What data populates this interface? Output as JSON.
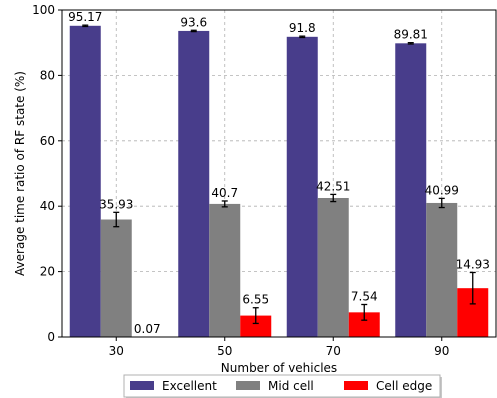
{
  "chart_data": {
    "type": "bar",
    "title": "",
    "xlabel": "Number of vehicles",
    "ylabel": "Average time ratio of RF state (%)",
    "categories": [
      "30",
      "50",
      "70",
      "90"
    ],
    "ylim": [
      0,
      100
    ],
    "yticks": [
      0,
      20,
      40,
      60,
      80,
      100
    ],
    "grid": true,
    "legend_position": "bottom",
    "series": [
      {
        "name": "Excellent",
        "color": "#483d8b",
        "values": [
          95.17,
          93.6,
          91.8,
          89.81
        ],
        "labels": [
          "95.17",
          "93.6",
          "91.8",
          "89.81"
        ],
        "errors": [
          0.2,
          0.2,
          0.2,
          0.2
        ]
      },
      {
        "name": "Mid cell",
        "color": "#808080",
        "values": [
          35.93,
          40.7,
          42.51,
          40.99
        ],
        "labels": [
          "35.93",
          "40.7",
          "42.51",
          "40.99"
        ],
        "errors": [
          2.2,
          0.9,
          1.1,
          1.4
        ]
      },
      {
        "name": "Cell edge",
        "color": "#ff0000",
        "values": [
          0.07,
          6.55,
          7.54,
          14.93
        ],
        "labels": [
          "0.07",
          "6.55",
          "7.54",
          "14.93"
        ],
        "errors": [
          0,
          2.4,
          2.4,
          4.8
        ]
      }
    ]
  }
}
